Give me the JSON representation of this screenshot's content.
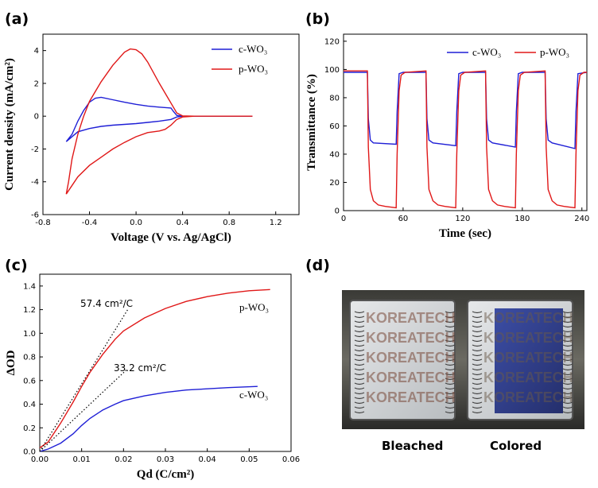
{
  "panel_labels": [
    "(a)",
    "(b)",
    "(c)",
    "(d)"
  ],
  "chart_data": [
    {
      "type": "line",
      "panel": "(a)",
      "xlabel": "Voltage (V vs. Ag/AgCl)",
      "ylabel": "Current density (mA/cm²)",
      "xlim": [
        -0.8,
        1.4
      ],
      "ylim": [
        -6,
        5
      ],
      "xticks": [
        "-0.8",
        "-0.4",
        "0.0",
        "0.4",
        "0.8",
        "1.2"
      ],
      "yticks": [
        "-6",
        "-4",
        "-2",
        "0",
        "2",
        "4"
      ],
      "legend_position": "top-right",
      "series": [
        {
          "name": "c-WO₃",
          "color": "#1f1fd6",
          "points": [
            [
              -0.6,
              -1.55
            ],
            [
              -0.55,
              -1.1
            ],
            [
              -0.5,
              -0.3
            ],
            [
              -0.45,
              0.35
            ],
            [
              -0.4,
              0.85
            ],
            [
              -0.35,
              1.1
            ],
            [
              -0.3,
              1.15
            ],
            [
              -0.2,
              1.0
            ],
            [
              -0.1,
              0.85
            ],
            [
              0.0,
              0.72
            ],
            [
              0.1,
              0.62
            ],
            [
              0.2,
              0.55
            ],
            [
              0.3,
              0.5
            ],
            [
              0.32,
              0.3
            ],
            [
              0.35,
              0.05
            ],
            [
              0.4,
              0.0
            ],
            [
              1.0,
              0.0
            ],
            [
              0.4,
              0.0
            ],
            [
              0.35,
              -0.05
            ],
            [
              0.3,
              -0.2
            ],
            [
              0.2,
              -0.3
            ],
            [
              0.1,
              -0.38
            ],
            [
              0.0,
              -0.45
            ],
            [
              -0.1,
              -0.5
            ],
            [
              -0.2,
              -0.55
            ],
            [
              -0.3,
              -0.62
            ],
            [
              -0.4,
              -0.75
            ],
            [
              -0.5,
              -0.95
            ],
            [
              -0.6,
              -1.55
            ]
          ]
        },
        {
          "name": "p-WO₃",
          "color": "#e01818",
          "points": [
            [
              -0.6,
              -4.75
            ],
            [
              -0.58,
              -4.0
            ],
            [
              -0.55,
              -2.6
            ],
            [
              -0.5,
              -1.1
            ],
            [
              -0.45,
              0.0
            ],
            [
              -0.4,
              0.9
            ],
            [
              -0.3,
              2.1
            ],
            [
              -0.2,
              3.1
            ],
            [
              -0.1,
              3.9
            ],
            [
              -0.05,
              4.1
            ],
            [
              0.0,
              4.05
            ],
            [
              0.05,
              3.8
            ],
            [
              0.1,
              3.3
            ],
            [
              0.2,
              2.0
            ],
            [
              0.3,
              0.8
            ],
            [
              0.35,
              0.2
            ],
            [
              0.4,
              0.02
            ],
            [
              0.5,
              0.0
            ],
            [
              1.0,
              0.0
            ],
            [
              0.5,
              0.0
            ],
            [
              0.4,
              -0.05
            ],
            [
              0.35,
              -0.2
            ],
            [
              0.3,
              -0.55
            ],
            [
              0.25,
              -0.8
            ],
            [
              0.2,
              -0.9
            ],
            [
              0.1,
              -1.0
            ],
            [
              0.0,
              -1.25
            ],
            [
              -0.1,
              -1.6
            ],
            [
              -0.2,
              -2.0
            ],
            [
              -0.3,
              -2.5
            ],
            [
              -0.4,
              -3.0
            ],
            [
              -0.5,
              -3.7
            ],
            [
              -0.6,
              -4.75
            ]
          ]
        }
      ]
    },
    {
      "type": "line",
      "panel": "(b)",
      "xlabel": "Time (sec)",
      "ylabel": "Transmittance (%)",
      "xlim": [
        0,
        245
      ],
      "ylim": [
        0,
        125
      ],
      "xticks": [
        "0",
        "60",
        "120",
        "180",
        "240"
      ],
      "yticks": [
        "0",
        "20",
        "40",
        "60",
        "80",
        "100",
        "120"
      ],
      "legend_position": "top",
      "series": [
        {
          "name": "c-WO₃",
          "color": "#1f1fd6",
          "points": [
            [
              0,
              98
            ],
            [
              24,
              98
            ],
            [
              25,
              65
            ],
            [
              27,
              50
            ],
            [
              30,
              48
            ],
            [
              53,
              47
            ],
            [
              54,
              70
            ],
            [
              56,
              97
            ],
            [
              60,
              98
            ],
            [
              83,
              98
            ],
            [
              84,
              65
            ],
            [
              86,
              50
            ],
            [
              90,
              48
            ],
            [
              113,
              46
            ],
            [
              114,
              70
            ],
            [
              116,
              97
            ],
            [
              120,
              98
            ],
            [
              143,
              98
            ],
            [
              144,
              65
            ],
            [
              146,
              50
            ],
            [
              150,
              48
            ],
            [
              173,
              45
            ],
            [
              174,
              70
            ],
            [
              176,
              97
            ],
            [
              180,
              98
            ],
            [
              203,
              98
            ],
            [
              204,
              65
            ],
            [
              206,
              50
            ],
            [
              210,
              48
            ],
            [
              233,
              44
            ],
            [
              234,
              70
            ],
            [
              236,
              97
            ],
            [
              245,
              98
            ]
          ]
        },
        {
          "name": "p-WO₃",
          "color": "#e01818",
          "points": [
            [
              0,
              99
            ],
            [
              24,
              99
            ],
            [
              25,
              45
            ],
            [
              27,
              15
            ],
            [
              30,
              7
            ],
            [
              35,
              4
            ],
            [
              42,
              3
            ],
            [
              53,
              2
            ],
            [
              54,
              40
            ],
            [
              56,
              85
            ],
            [
              58,
              96
            ],
            [
              62,
              98
            ],
            [
              83,
              99
            ],
            [
              84,
              45
            ],
            [
              86,
              15
            ],
            [
              90,
              7
            ],
            [
              95,
              4
            ],
            [
              102,
              3
            ],
            [
              113,
              2
            ],
            [
              114,
              40
            ],
            [
              116,
              85
            ],
            [
              118,
              96
            ],
            [
              122,
              98
            ],
            [
              143,
              99
            ],
            [
              144,
              45
            ],
            [
              146,
              15
            ],
            [
              150,
              7
            ],
            [
              155,
              4
            ],
            [
              162,
              3
            ],
            [
              173,
              2
            ],
            [
              174,
              40
            ],
            [
              176,
              85
            ],
            [
              178,
              96
            ],
            [
              182,
              98
            ],
            [
              203,
              99
            ],
            [
              204,
              45
            ],
            [
              206,
              15
            ],
            [
              210,
              7
            ],
            [
              215,
              4
            ],
            [
              222,
              3
            ],
            [
              233,
              2
            ],
            [
              234,
              40
            ],
            [
              236,
              85
            ],
            [
              238,
              96
            ],
            [
              242,
              98
            ],
            [
              245,
              98
            ]
          ]
        }
      ]
    },
    {
      "type": "line",
      "panel": "(c)",
      "xlabel": "Qd (C/cm²)",
      "ylabel": "ΔOD",
      "xlim": [
        0.0,
        0.06
      ],
      "ylim": [
        0.0,
        1.5
      ],
      "xticks": [
        "0.00",
        "0.01",
        "0.02",
        "0.03",
        "0.04",
        "0.05",
        "0.06"
      ],
      "yticks": [
        "0.0",
        "0.2",
        "0.4",
        "0.6",
        "0.8",
        "1.0",
        "1.2",
        "1.4"
      ],
      "series": [
        {
          "name": "p-WO₃",
          "color": "#e01818",
          "points": [
            [
              0.0,
              0.03
            ],
            [
              0.002,
              0.08
            ],
            [
              0.005,
              0.24
            ],
            [
              0.008,
              0.42
            ],
            [
              0.01,
              0.55
            ],
            [
              0.012,
              0.67
            ],
            [
              0.015,
              0.82
            ],
            [
              0.018,
              0.95
            ],
            [
              0.02,
              1.02
            ],
            [
              0.025,
              1.13
            ],
            [
              0.03,
              1.21
            ],
            [
              0.035,
              1.27
            ],
            [
              0.04,
              1.31
            ],
            [
              0.045,
              1.34
            ],
            [
              0.05,
              1.36
            ],
            [
              0.055,
              1.37
            ]
          ]
        },
        {
          "name": "c-WO₃",
          "color": "#1f1fd6",
          "points": [
            [
              0.0,
              0.0
            ],
            [
              0.002,
              0.02
            ],
            [
              0.005,
              0.07
            ],
            [
              0.008,
              0.15
            ],
            [
              0.01,
              0.22
            ],
            [
              0.012,
              0.28
            ],
            [
              0.015,
              0.35
            ],
            [
              0.018,
              0.4
            ],
            [
              0.02,
              0.43
            ],
            [
              0.025,
              0.47
            ],
            [
              0.03,
              0.5
            ],
            [
              0.035,
              0.52
            ],
            [
              0.04,
              0.53
            ],
            [
              0.045,
              0.54
            ],
            [
              0.052,
              0.55
            ]
          ]
        }
      ],
      "fits": [
        {
          "points": [
            [
              0.0,
              0.0
            ],
            [
              0.021,
              1.2
            ]
          ],
          "color": "#000000"
        },
        {
          "points": [
            [
              0.0,
              0.0
            ],
            [
              0.021,
              0.7
            ]
          ],
          "color": "#000000"
        }
      ],
      "annotations": {
        "p_slope": "57.4 cm²/C",
        "c_slope": "33.2 cm²/C",
        "p_label": "p-WO₃",
        "c_label": "c-WO₃"
      }
    }
  ],
  "photo": {
    "bleached_caption": "Bleached",
    "colored_caption": "Colored",
    "logo_text": [
      "KOREATECH",
      "KOREATECH",
      "KOREATECH",
      "KOREATECH",
      "KOREATECH"
    ],
    "colors": {
      "bleached_tint": "#cfd3d6",
      "colored_tint": "#1c2f8e",
      "frame": "#2d2d2d"
    }
  }
}
